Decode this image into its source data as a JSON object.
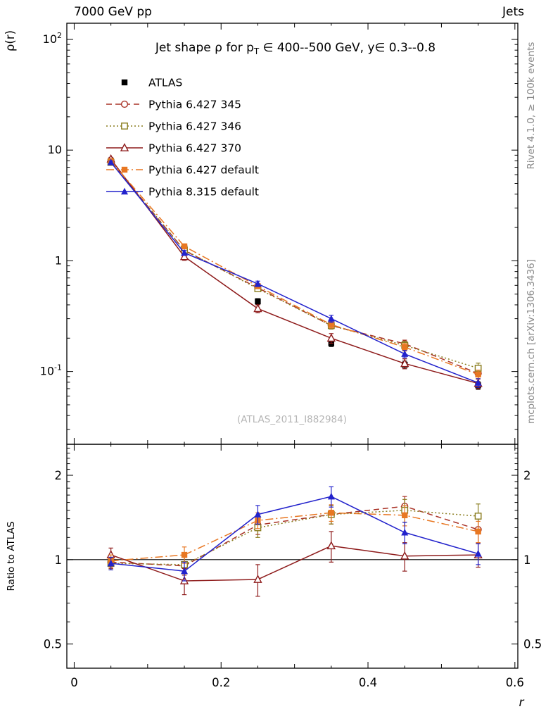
{
  "header": {
    "left": "7000 GeV pp",
    "right": "Jets"
  },
  "side_notes": {
    "top_right": "Rivet 4.1.0, ≥ 100k events",
    "bottom_right": "mcplots.cern.ch [arXiv:1306.3436]"
  },
  "watermark": "(ATLAS_2011_I882984)",
  "chart_data": {
    "type": "line",
    "title": "Jet shape ρ for p_T ∈ 400--500 GeV, y∈ 0.3--0.8",
    "title_parts": {
      "pre": "Jet shape ρ for p",
      "sub": "T",
      "post": " ∈ 400--500 GeV, y∈ 0.3--0.8"
    },
    "xlabel": "r",
    "ylabel": "ρ(r)",
    "ratio_ylabel": "Ratio to ATLAS",
    "grid": false,
    "legend_position": "top-left",
    "x_scale": "linear",
    "y_scale": "log",
    "ratio_scale": "log",
    "x": [
      0.05,
      0.15,
      0.25,
      0.35,
      0.45,
      0.55
    ],
    "xlim": [
      -0.01,
      0.604
    ],
    "ylim_log": [
      0.022,
      140
    ],
    "ratio_ylim": [
      0.41,
      2.58
    ],
    "x_ticks": [
      {
        "value": 0,
        "label": "0"
      },
      {
        "value": 0.2,
        "label": "0.2"
      },
      {
        "value": 0.4,
        "label": "0.4"
      },
      {
        "value": 0.6,
        "label": "0.6"
      }
    ],
    "y_ticks": [
      {
        "value": 100,
        "label": "10^2"
      },
      {
        "value": 10,
        "label": "10"
      },
      {
        "value": 1,
        "label": "1"
      },
      {
        "value": 0.1,
        "label": "10^-1"
      }
    ],
    "ratio_ticks": [
      {
        "value": 2,
        "label": "2"
      },
      {
        "value": 1,
        "label": "1"
      },
      {
        "value": 0.5,
        "label": "0.5"
      }
    ],
    "reference_line": 1,
    "series": [
      {
        "name": "ATLAS",
        "color": "#000000",
        "marker": "square-filled",
        "line": "none",
        "reference": true,
        "values": [
          8.0,
          1.3,
          0.43,
          0.18,
          0.115,
          0.075
        ],
        "errors": [
          0.3,
          0.06,
          0.025,
          0.012,
          0.009,
          0.006
        ]
      },
      {
        "name": "Pythia 6.427 345",
        "color": "#a93226",
        "marker": "circle-open",
        "line": "dashed",
        "values": [
          7.85,
          1.24,
          0.57,
          0.26,
          0.178,
          0.096
        ],
        "errors": [
          0.25,
          0.07,
          0.03,
          0.018,
          0.014,
          0.01
        ],
        "ratio": [
          0.98,
          0.95,
          1.33,
          1.45,
          1.55,
          1.28
        ],
        "ratio_errors": [
          0.05,
          0.07,
          0.1,
          0.11,
          0.13,
          0.13
        ]
      },
      {
        "name": "Pythia 6.427 346",
        "color": "#8a7d1f",
        "marker": "square-open",
        "line": "dotted",
        "values": [
          7.75,
          1.25,
          0.56,
          0.26,
          0.172,
          0.107
        ],
        "errors": [
          0.25,
          0.07,
          0.03,
          0.018,
          0.015,
          0.012
        ],
        "ratio": [
          0.97,
          0.96,
          1.3,
          1.45,
          1.5,
          1.43
        ],
        "ratio_errors": [
          0.05,
          0.07,
          0.1,
          0.11,
          0.14,
          0.15
        ]
      },
      {
        "name": "Pythia 6.427 370",
        "color": "#8e1b1b",
        "marker": "triangle-open",
        "line": "solid",
        "values": [
          8.3,
          1.09,
          0.37,
          0.2,
          0.118,
          0.078
        ],
        "errors": [
          0.3,
          0.08,
          0.03,
          0.02,
          0.012,
          0.008
        ],
        "ratio": [
          1.04,
          0.84,
          0.85,
          1.12,
          1.03,
          1.04
        ],
        "ratio_errors": [
          0.06,
          0.09,
          0.11,
          0.14,
          0.12,
          0.1
        ]
      },
      {
        "name": "Pythia 6.427 default",
        "color": "#e87722",
        "marker": "square-filled",
        "line": "dashdot",
        "values": [
          7.95,
          1.35,
          0.59,
          0.265,
          0.166,
          0.094
        ],
        "errors": [
          0.25,
          0.07,
          0.03,
          0.018,
          0.013,
          0.009
        ],
        "ratio": [
          0.99,
          1.04,
          1.38,
          1.47,
          1.44,
          1.26
        ],
        "ratio_errors": [
          0.05,
          0.07,
          0.09,
          0.1,
          0.12,
          0.11
        ]
      },
      {
        "name": "Pythia 8.315 default",
        "color": "#2222cc",
        "marker": "triangle-filled",
        "line": "solid",
        "values": [
          7.75,
          1.18,
          0.62,
          0.3,
          0.144,
          0.079
        ],
        "errors": [
          0.22,
          0.06,
          0.035,
          0.022,
          0.011,
          0.007
        ],
        "ratio": [
          0.97,
          0.91,
          1.45,
          1.68,
          1.25,
          1.05
        ],
        "ratio_errors": [
          0.05,
          0.07,
          0.11,
          0.14,
          0.11,
          0.09
        ]
      }
    ]
  }
}
